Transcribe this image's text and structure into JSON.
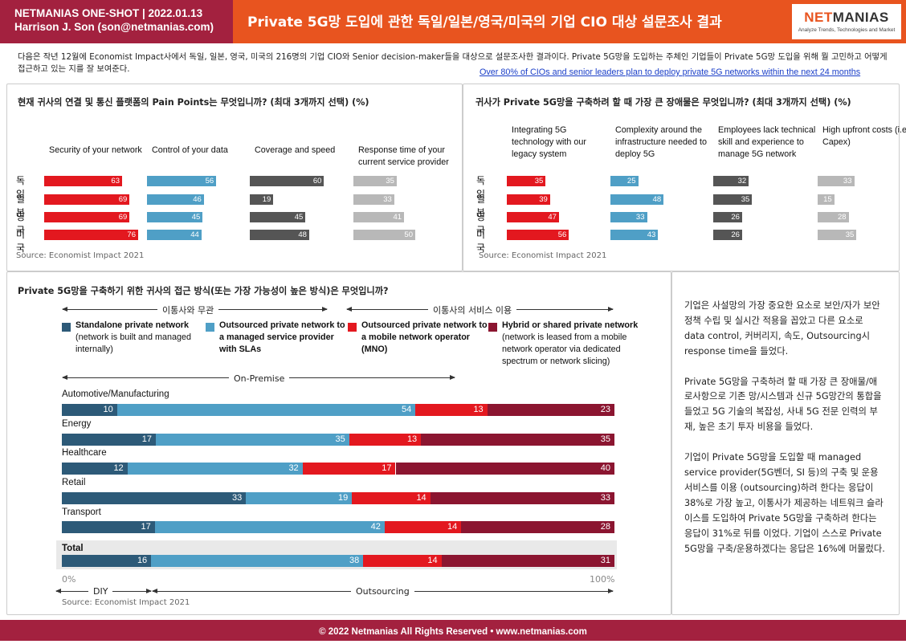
{
  "header": {
    "line1": "NETMANIAS ONE-SHOT  |  2022.01.13",
    "line2": "Harrison J. Son (son@netmanias.com)",
    "title": "Private 5G망 도입에 관한 독일/일본/영국/미국의 기업 CIO 대상 설문조사 결과",
    "logo_net": "NET",
    "logo_manias": "MANIAS",
    "logo_tagline": "Analyze Trends, Technologies and Market",
    "colors": {
      "maroon": "#a3213f",
      "orange": "#e8541f"
    }
  },
  "intro": {
    "text": "다음은 작년 12월에 Economist Impact사에서 독일, 일본, 영국, 미국의 216명의 기업 CIO와 Senior decision-maker들을 대상으로 설문조사한 결과이다. Private 5G망을 도입하는 주체인 기업들이 Private 5G망 도입을 위해 뭘 고민하고 어떻게 접근하고 있는 지를 잘 보여준다.",
    "link": "Over 80% of CIOs and senior leaders plan to deploy private 5G networks within the next 24 months"
  },
  "source": "Source: Economist Impact 2021",
  "footer": "© 2022 Netmanias All Rights Reserved • www.netmanias.com",
  "side_text": "기업은 사설망의 가장 중요한 요소로 보안/자가 보안 정책 수립 및 실시간 적용을 꼽았고 다른 요소로 data control, 커버리지, 속도, Outsourcing시 response time을 들었다.\n\nPrivate 5G망을 구축하려 할 때 가장 큰 장애물/애로사항으로 기존 망/시스템과 신규 5G망간의 통합을 들었고 5G 기술의 복잡성, 사내 5G 전문 인력의 부재, 높은 초기 투자 비용을 들었다.\n\n기업이 Private 5G망을 도입할 때 managed service provider(5G벤더, SI 등)의 구축 및 운용 서비스를 이용 (outsourcing)하려 한다는 응답이 38%로 가장 높고, 이통사가 제공하는 네트워크 슬라이스를 도입하여 Private 5G망을 구축하려 한다는 응답이 31%로 뒤를 이었다. 기업이 스스로 Private 5G망을 구축/운용하겠다는 응답은 16%에 머물렀다.",
  "chart_data": [
    {
      "type": "bar",
      "title": "현재 귀사의 연결 및 통신 플랫폼의 Pain Points는 무엇입니까? (최대 3개까지 선택) (%)",
      "categories": [
        "독일",
        "일본",
        "영국",
        "미국"
      ],
      "series": [
        {
          "name": "Security of your network",
          "values": [
            63,
            69,
            69,
            76
          ],
          "color": "#e3181f"
        },
        {
          "name": "Control of your data",
          "values": [
            56,
            46,
            45,
            44
          ],
          "color": "#4f9fc6"
        },
        {
          "name": "Coverage and speed",
          "values": [
            60,
            19,
            45,
            48
          ],
          "color": "#555555"
        },
        {
          "name": "Response time of your current service provider",
          "values": [
            35,
            33,
            41,
            50
          ],
          "color": "#b8b8b8"
        }
      ]
    },
    {
      "type": "bar",
      "title": "귀사가 Private 5G망을 구축하려 할 때 가장 큰 장애물은 무엇입니까? (최대 3개까지 선택) (%)",
      "categories": [
        "독일",
        "일본",
        "영국",
        "미국"
      ],
      "series": [
        {
          "name": "Integrating 5G technology with our legacy system",
          "values": [
            35,
            39,
            47,
            56
          ],
          "color": "#e3181f"
        },
        {
          "name": "Complexity around the infrastructure needed to deploy 5G",
          "values": [
            25,
            48,
            33,
            43
          ],
          "color": "#4f9fc6"
        },
        {
          "name": "Employees lack technical skill and experience to manage 5G network",
          "values": [
            32,
            35,
            26,
            26
          ],
          "color": "#555555"
        },
        {
          "name": "High upfront costs (i.e., Capex)",
          "values": [
            33,
            15,
            28,
            35
          ],
          "color": "#b8b8b8"
        }
      ]
    },
    {
      "type": "bar",
      "stacked": true,
      "title": "Private 5G망을 구축하기 위한 귀사의 접근 방식(또는 가장 가능성이 높은 방식)은 무엇입니까?",
      "categories": [
        "Automotive/Manufacturing",
        "Energy",
        "Healthcare",
        "Retail",
        "Transport",
        "Total"
      ],
      "series": [
        {
          "name": "Standalone private network",
          "desc": "(network is built and managed internally)",
          "values": [
            10,
            17,
            12,
            33,
            17,
            16
          ],
          "color": "#2d5a78"
        },
        {
          "name": "Outsourced private network to a managed service provider with SLAs",
          "desc": "",
          "values": [
            54,
            35,
            32,
            19,
            42,
            38
          ],
          "color": "#4f9fc6"
        },
        {
          "name": "Outsourced private network to a mobile network operator (MNO)",
          "desc": "",
          "values": [
            13,
            13,
            17,
            14,
            14,
            14
          ],
          "color": "#e3181f"
        },
        {
          "name": "Hybrid or shared private network",
          "desc": "(network is leased from a mobile network operator via dedicated spectrum or network slicing)",
          "values": [
            23,
            35,
            40,
            33,
            28,
            31
          ],
          "color": "#8b1530"
        }
      ],
      "xlim": [
        0,
        100
      ],
      "x_ticks": [
        "0%",
        "100%"
      ],
      "groups": {
        "no_operator": "이통사와 무관",
        "operator_service": "이통사의 서비스 이용",
        "on_premise": "On-Premise",
        "diy": "DIY",
        "outsourcing": "Outsourcing"
      }
    }
  ]
}
